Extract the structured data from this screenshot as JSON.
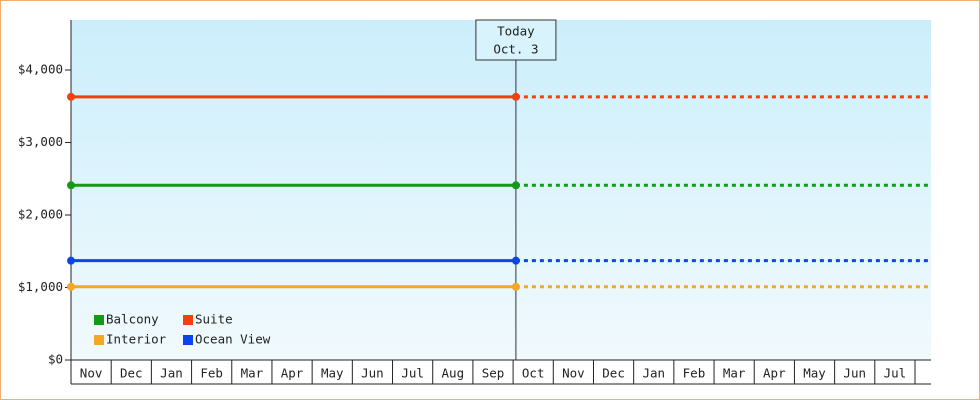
{
  "chart_data": {
    "type": "line",
    "categories": [
      "Nov",
      "Dec",
      "Jan",
      "Feb",
      "Mar",
      "Apr",
      "May",
      "Jun",
      "Jul",
      "Aug",
      "Sep",
      "Oct",
      "Nov",
      "Dec",
      "Jan",
      "Feb",
      "Mar",
      "Apr",
      "May",
      "Jun",
      "Jul"
    ],
    "x": [
      0,
      11.07
    ],
    "xlim": [
      0,
      21
    ],
    "series": [
      {
        "name": "Balcony",
        "color": "#159a15",
        "values": [
          2410,
          2410
        ]
      },
      {
        "name": "Suite",
        "color": "#f0400e",
        "values": [
          3630,
          3630
        ]
      },
      {
        "name": "Interior",
        "color": "#f5a623",
        "values": [
          1010,
          1010
        ]
      },
      {
        "name": "Ocean View",
        "color": "#0a44f0",
        "values": [
          1370,
          1370
        ]
      }
    ],
    "ylim": [
      0,
      4690
    ],
    "yticks": [
      {
        "value": 0,
        "label": "$0"
      },
      {
        "value": 1000,
        "label": "$1,000"
      },
      {
        "value": 2000,
        "label": "$2,000"
      },
      {
        "value": 3000,
        "label": "$3,000"
      },
      {
        "value": 4000,
        "label": "$4,000"
      }
    ],
    "annotation": {
      "lines": [
        "Today",
        "Oct. 3"
      ]
    },
    "legend": "lower left"
  }
}
